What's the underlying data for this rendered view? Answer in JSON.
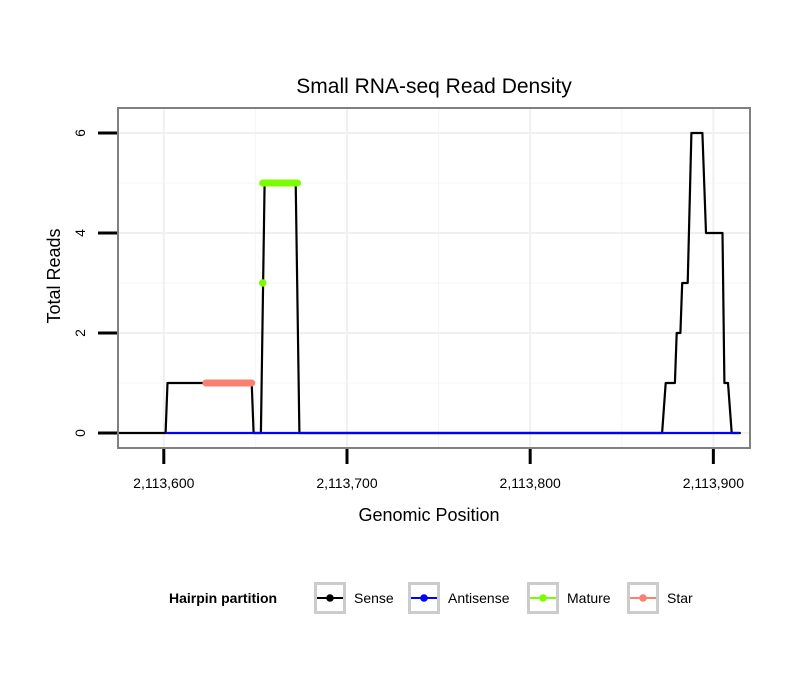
{
  "chart_data": {
    "type": "line",
    "title": "Small RNA-seq Read Density",
    "xlabel": "Genomic Position",
    "ylabel": "Total Reads",
    "xlim": [
      2113575,
      2113920
    ],
    "ylim": [
      -0.3,
      6.5
    ],
    "x_ticks": [
      2113600,
      2113700,
      2113800,
      2113900
    ],
    "x_tick_labels": [
      "2,113,600",
      "2,113,700",
      "2,113,800",
      "2,113,900"
    ],
    "y_ticks": [
      0,
      2,
      4,
      6
    ],
    "y_tick_labels": [
      "0",
      "2",
      "4",
      "6"
    ],
    "grid": true,
    "legend": {
      "title": "Hairpin partition",
      "position": "bottom",
      "entries": [
        "Sense",
        "Antisense",
        "Mature",
        "Star"
      ]
    },
    "series": [
      {
        "name": "Sense",
        "color": "#000000",
        "points": [
          [
            2113575,
            0
          ],
          [
            2113601,
            0
          ],
          [
            2113602,
            1
          ],
          [
            2113648,
            1
          ],
          [
            2113649,
            0
          ],
          [
            2113653,
            0
          ],
          [
            2113655,
            5
          ],
          [
            2113672,
            5
          ],
          [
            2113674,
            0
          ],
          [
            2113872,
            0
          ],
          [
            2113874,
            1
          ],
          [
            2113879,
            1
          ],
          [
            2113880,
            2
          ],
          [
            2113882,
            2
          ],
          [
            2113883,
            3
          ],
          [
            2113886,
            3
          ],
          [
            2113888,
            6
          ],
          [
            2113894,
            6
          ],
          [
            2113896,
            4
          ],
          [
            2113905,
            4
          ],
          [
            2113906,
            1
          ],
          [
            2113908,
            1
          ],
          [
            2113910,
            0
          ],
          [
            2113915,
            0
          ]
        ]
      },
      {
        "name": "Antisense",
        "color": "#0000ff",
        "points": [
          [
            2113601,
            0
          ],
          [
            2113672,
            0
          ],
          [
            2113872,
            0
          ],
          [
            2113914,
            0
          ]
        ]
      },
      {
        "name": "Mature",
        "color": "#7cfc00",
        "points": [
          [
            2113654,
            5
          ],
          [
            2113673,
            5
          ]
        ],
        "extra_points": [
          [
            2113654,
            3
          ]
        ]
      },
      {
        "name": "Star",
        "color": "#fa8072",
        "points": [
          [
            2113623,
            1
          ],
          [
            2113648,
            1
          ]
        ]
      }
    ]
  }
}
